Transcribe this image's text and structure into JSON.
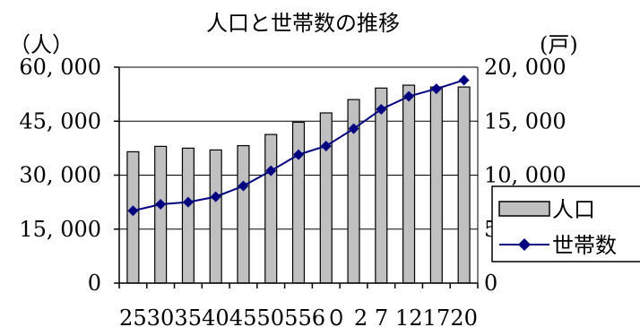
{
  "chart_data": {
    "type": "bar+line",
    "title": "人口と世帯数の推移",
    "y_left_unit": "（人）",
    "y_right_unit": "(戸)",
    "y_left_ticks": [
      "60, 000",
      "45, 000",
      "30, 000",
      "15, 000",
      "0"
    ],
    "y_right_ticks": [
      "20, 000",
      "15, 000",
      "10, 000",
      "5",
      "0"
    ],
    "y_left_range": [
      0,
      60000
    ],
    "y_right_range": [
      0,
      20000
    ],
    "x_labels_text": "253035404550556０ 2  7 121720",
    "categories": [
      "25",
      "30",
      "35",
      "40",
      "45",
      "50",
      "55",
      "60",
      "2",
      "7",
      "12",
      "17",
      "20"
    ],
    "series": [
      {
        "name": "人口",
        "kind": "bar",
        "axis": "left",
        "color": "#c0c0c0",
        "values": [
          36500,
          38000,
          37500,
          37000,
          38200,
          41300,
          44700,
          47300,
          51000,
          54200,
          55000,
          54500,
          54500
        ]
      },
      {
        "name": "世帯数",
        "kind": "line",
        "axis": "right",
        "color": "#000080",
        "values": [
          6700,
          7300,
          7500,
          8000,
          9000,
          10400,
          11900,
          12700,
          14300,
          16100,
          17300,
          18000,
          18800
        ]
      }
    ],
    "grid": true,
    "legend": "right-middle"
  }
}
